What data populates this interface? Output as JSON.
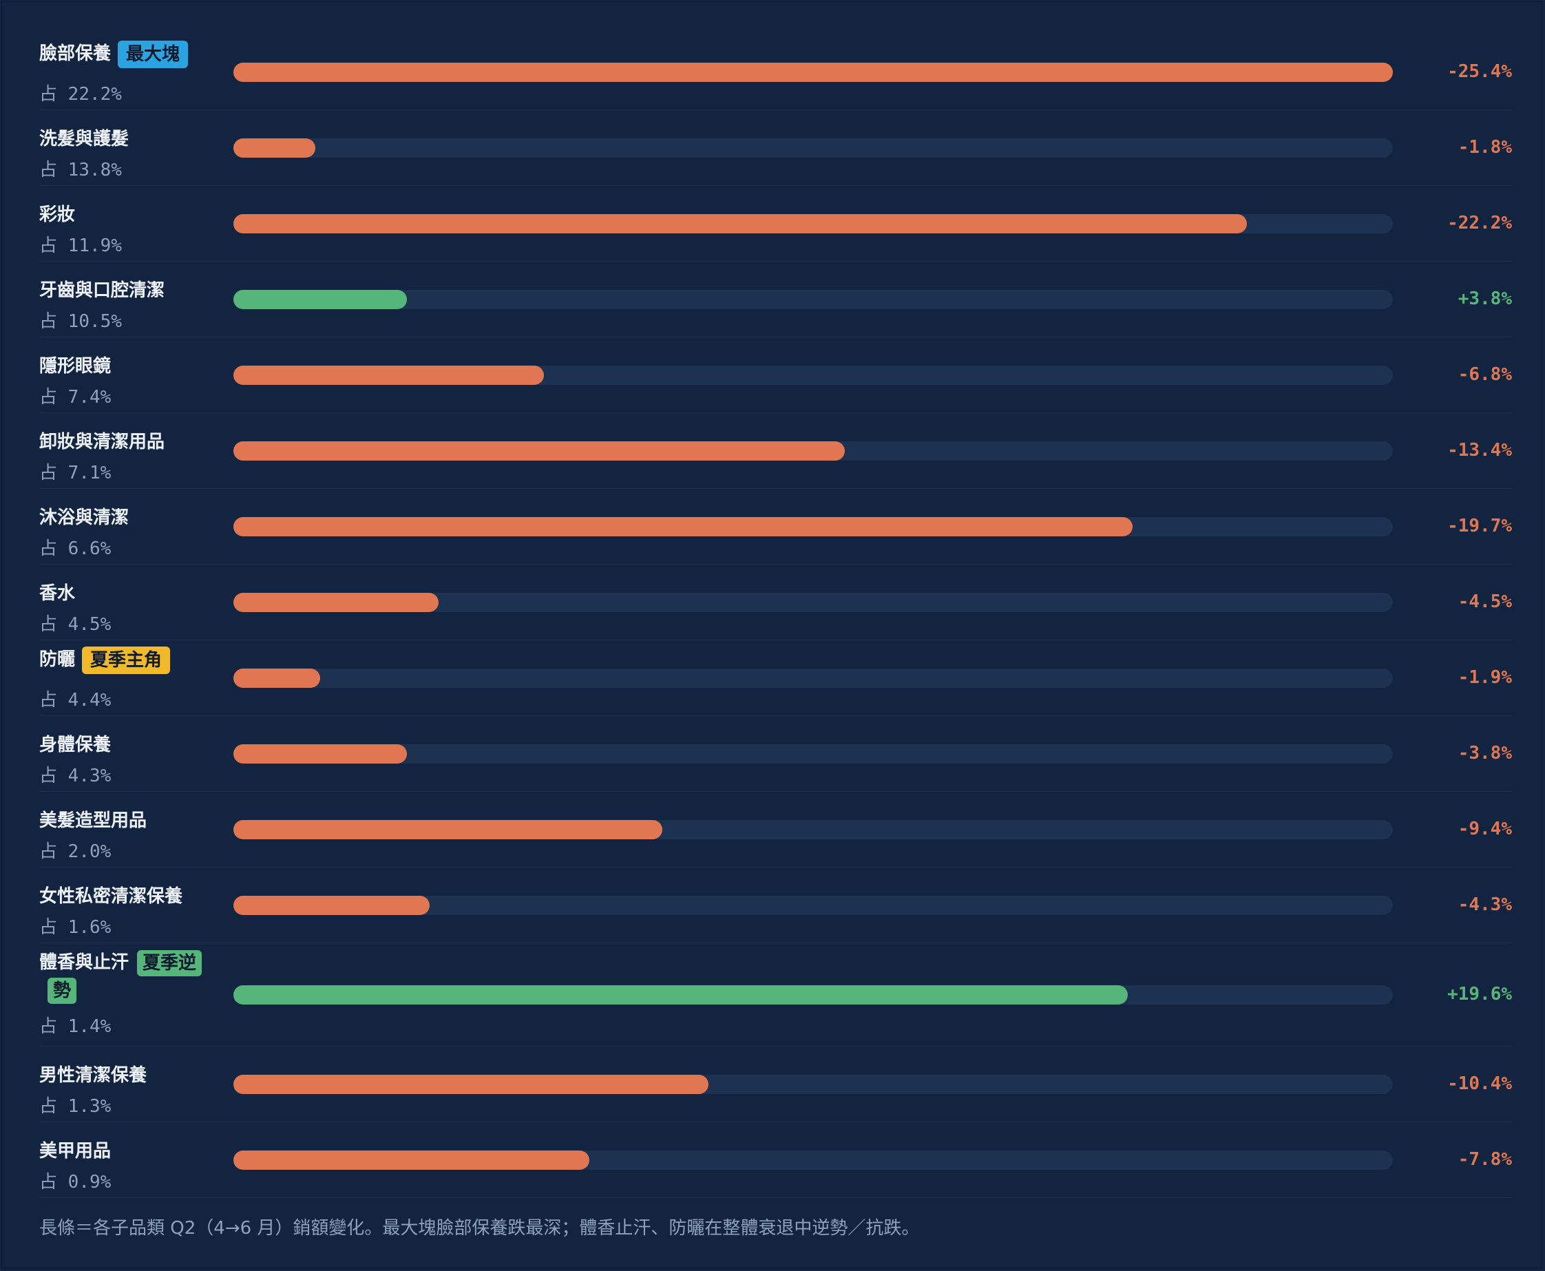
{
  "colors": {
    "decline": "#e07752",
    "growth": "#55b57a",
    "badge_blue": "#2aa3e0",
    "badge_yellow": "#f2b92b",
    "badge_green": "#55b57a"
  },
  "share_prefix": "占",
  "footnote": "長條＝各子品類 Q2（4→6 月）銷額變化。最大塊臉部保養跌最深；體香止汗、防曬在整體衰退中逆勢／抗跌。",
  "chart_data": {
    "type": "bar",
    "orientation": "horizontal",
    "value_scale_max_abs": 25.4,
    "categories": [
      {
        "name": "臉部保養",
        "share": "22.2%",
        "change": -25.4,
        "change_label": "-25.4%",
        "badge": "最大塊",
        "badge_color": "badge_blue"
      },
      {
        "name": "洗髮與護髮",
        "share": "13.8%",
        "change": -1.8,
        "change_label": "-1.8%"
      },
      {
        "name": "彩妝",
        "share": "11.9%",
        "change": -22.2,
        "change_label": "-22.2%"
      },
      {
        "name": "牙齒與口腔清潔",
        "share": "10.5%",
        "change": 3.8,
        "change_label": "+3.8%"
      },
      {
        "name": "隱形眼鏡",
        "share": "7.4%",
        "change": -6.8,
        "change_label": "-6.8%"
      },
      {
        "name": "卸妝與清潔用品",
        "share": "7.1%",
        "change": -13.4,
        "change_label": "-13.4%"
      },
      {
        "name": "沐浴與清潔",
        "share": "6.6%",
        "change": -19.7,
        "change_label": "-19.7%"
      },
      {
        "name": "香水",
        "share": "4.5%",
        "change": -4.5,
        "change_label": "-4.5%"
      },
      {
        "name": "防曬",
        "share": "4.4%",
        "change": -1.9,
        "change_label": "-1.9%",
        "badge": "夏季主角",
        "badge_color": "badge_yellow"
      },
      {
        "name": "身體保養",
        "share": "4.3%",
        "change": -3.8,
        "change_label": "-3.8%"
      },
      {
        "name": "美髮造型用品",
        "share": "2.0%",
        "change": -9.4,
        "change_label": "-9.4%"
      },
      {
        "name": "女性私密清潔保養",
        "share": "1.6%",
        "change": -4.3,
        "change_label": "-4.3%"
      },
      {
        "name": "體香與止汗",
        "share": "1.4%",
        "change": 19.6,
        "change_label": "+19.6%",
        "badge": "夏季逆勢",
        "badge_color": "badge_green"
      },
      {
        "name": "男性清潔保養",
        "share": "1.3%",
        "change": -10.4,
        "change_label": "-10.4%"
      },
      {
        "name": "美甲用品",
        "share": "0.9%",
        "change": -7.8,
        "change_label": "-7.8%"
      }
    ]
  }
}
